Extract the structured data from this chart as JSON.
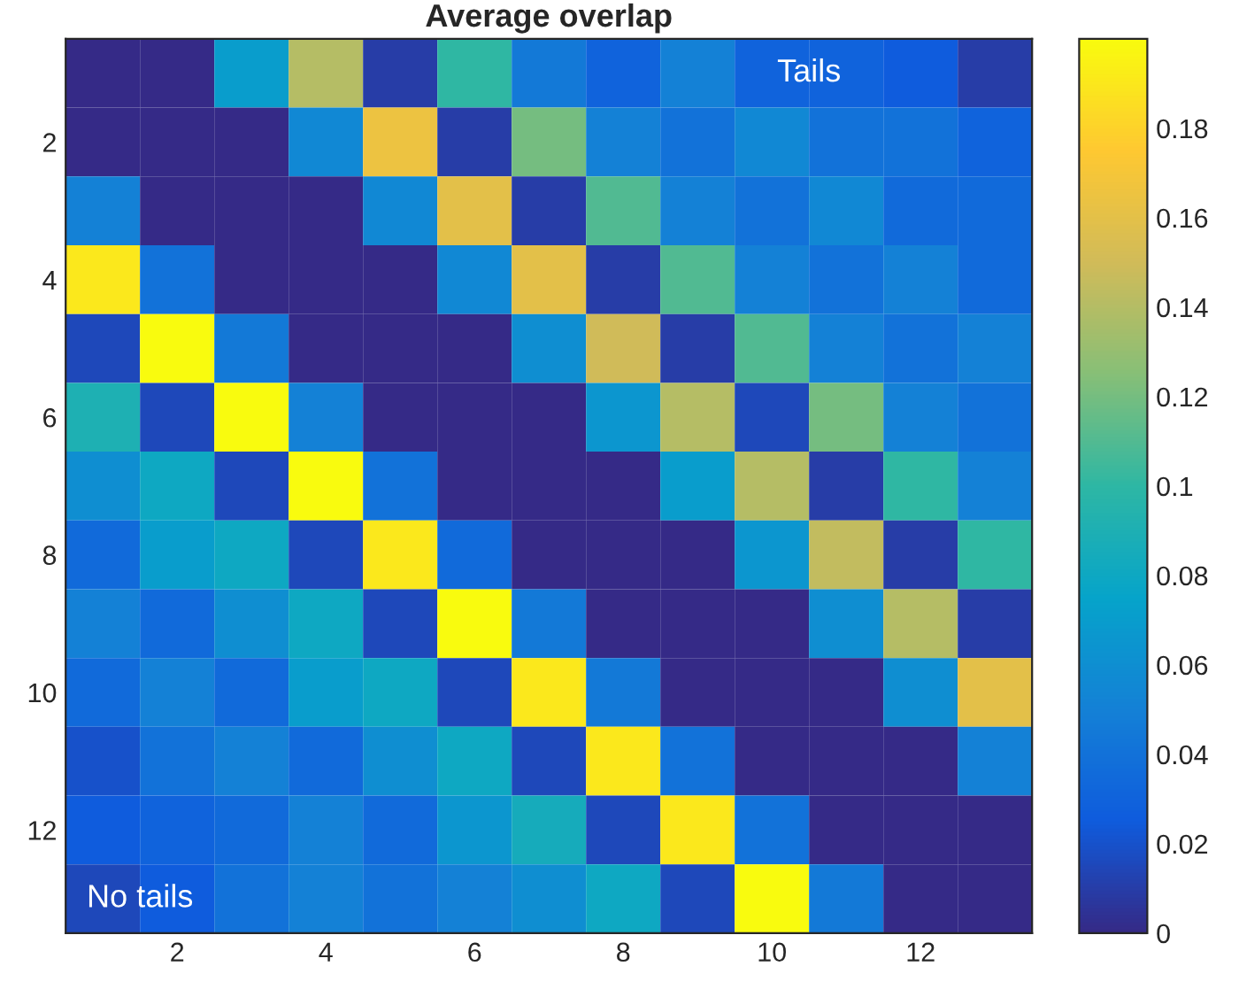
{
  "chart_data": {
    "type": "heatmap",
    "title": "Average overlap",
    "categories": [
      null,
      "2",
      null,
      "4",
      null,
      "6",
      null,
      "8",
      null,
      "10",
      null,
      "12",
      null
    ],
    "y_categories": [
      null,
      "2",
      null,
      "4",
      null,
      "6",
      null,
      "8",
      null,
      "10",
      null,
      "12",
      null
    ],
    "cells": [
      [
        0,
        0,
        0.07,
        0.14,
        0.01,
        0.1,
        0.045,
        0.03,
        0.05,
        0.03,
        0.03,
        0.025,
        0.01
      ],
      [
        0,
        0,
        0,
        0.055,
        0.165,
        0.01,
        0.12,
        0.05,
        0.04,
        0.055,
        0.04,
        0.04,
        0.03
      ],
      [
        0.05,
        0,
        0,
        0,
        0.055,
        0.16,
        0.01,
        0.11,
        0.05,
        0.04,
        0.055,
        0.035,
        0.035
      ],
      [
        0.19,
        0.04,
        0,
        0,
        0,
        0.055,
        0.16,
        0.01,
        0.11,
        0.05,
        0.04,
        0.05,
        0.035
      ],
      [
        0.015,
        0.2,
        0.045,
        0,
        0,
        0,
        0.06,
        0.15,
        0.01,
        0.11,
        0.05,
        0.04,
        0.05
      ],
      [
        0.09,
        0.015,
        0.2,
        0.05,
        0,
        0,
        0,
        0.065,
        0.14,
        0.015,
        0.12,
        0.05,
        0.04
      ],
      [
        0.06,
        0.08,
        0.015,
        0.2,
        0.04,
        0,
        0,
        0,
        0.07,
        0.14,
        0.01,
        0.1,
        0.05
      ],
      [
        0.035,
        0.07,
        0.08,
        0.015,
        0.19,
        0.035,
        0,
        0,
        0,
        0.065,
        0.145,
        0.01,
        0.1
      ],
      [
        0.05,
        0.035,
        0.06,
        0.08,
        0.015,
        0.2,
        0.045,
        0,
        0,
        0,
        0.06,
        0.14,
        0.01
      ],
      [
        0.035,
        0.05,
        0.035,
        0.07,
        0.08,
        0.015,
        0.19,
        0.045,
        0,
        0,
        0,
        0.06,
        0.16
      ],
      [
        0.02,
        0.04,
        0.05,
        0.035,
        0.06,
        0.08,
        0.015,
        0.19,
        0.04,
        0,
        0,
        0,
        0.05
      ],
      [
        0.025,
        0.03,
        0.035,
        0.05,
        0.035,
        0.065,
        0.085,
        0.015,
        0.19,
        0.04,
        0,
        0,
        0
      ],
      [
        0.015,
        0.025,
        0.04,
        0.05,
        0.04,
        0.05,
        0.06,
        0.08,
        0.015,
        0.2,
        0.045,
        0,
        0
      ]
    ],
    "clim": [
      0,
      0.2
    ],
    "cticks": [
      0,
      0.02,
      0.04,
      0.06,
      0.08,
      0.1,
      0.12,
      0.14,
      0.16,
      0.18
    ],
    "annotations": [
      "Tails",
      "No tails"
    ]
  }
}
